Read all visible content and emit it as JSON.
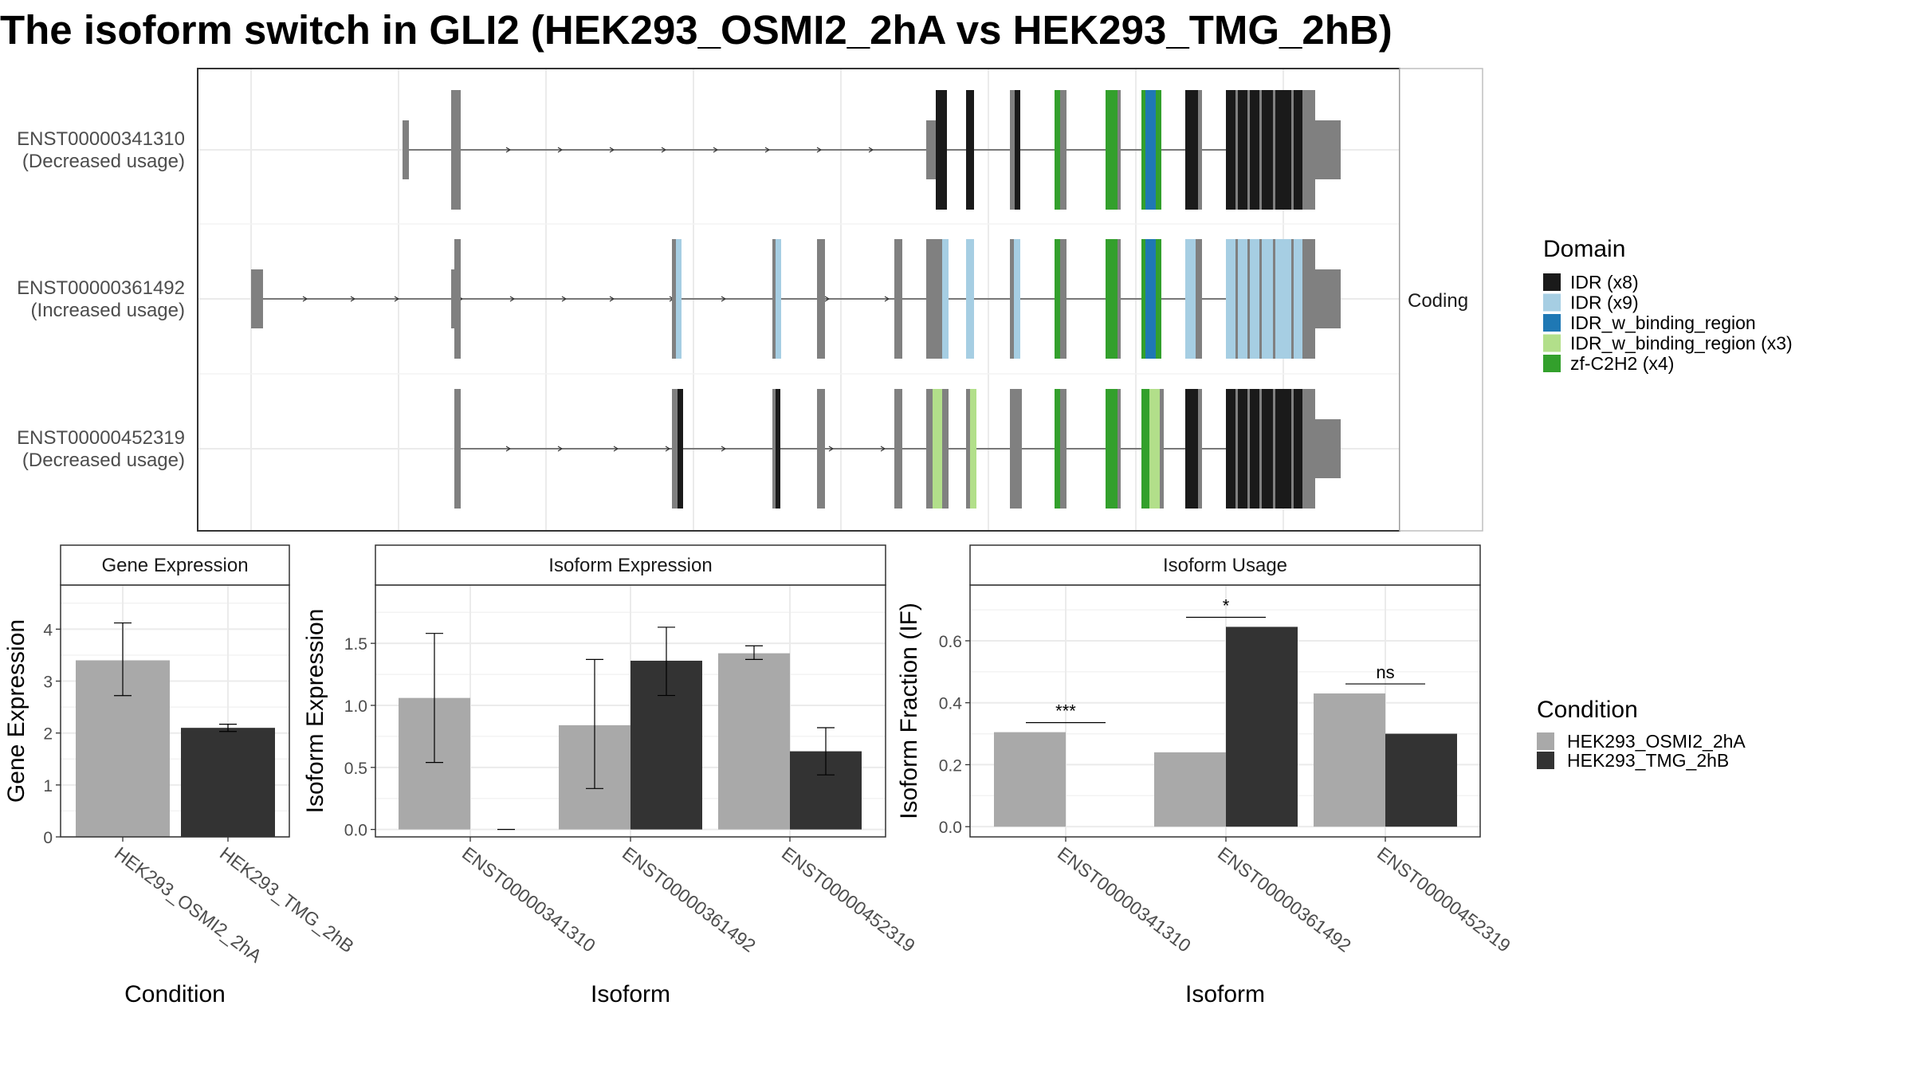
{
  "title": "The isoform switch in GLI2 (HEK293_OSMI2_2hA vs HEK293_TMG_2hB)",
  "colors": {
    "condition_a": "#A9A9A9",
    "condition_b": "#333333",
    "intron_exon": "#808080",
    "domains": {
      "IDR_x8": "#1A1A1A",
      "IDR_x9": "#A6CEE3",
      "IDR_w_binding_region": "#1F78B4",
      "IDR_w_binding_region_x3": "#B2DF8A",
      "zf_C2H2_x4": "#33A02C"
    }
  },
  "structure": {
    "facet_label": "Coding",
    "legend_title": "Domain",
    "legend_items": [
      {
        "label": "IDR (x8)",
        "color": "#1A1A1A"
      },
      {
        "label": "IDR (x9)",
        "color": "#A6CEE3"
      },
      {
        "label": "IDR_w_binding_region",
        "color": "#1F78B4"
      },
      {
        "label": "IDR_w_binding_region (x3)",
        "color": "#B2DF8A"
      },
      {
        "label": "zf-C2H2 (x4)",
        "color": "#33A02C"
      }
    ],
    "isoforms": [
      {
        "id": "ENST00000341310",
        "note": "(Decreased usage)"
      },
      {
        "id": "ENST00000361492",
        "note": "(Increased usage)"
      },
      {
        "id": "ENST00000452319",
        "note": "(Decreased usage)"
      }
    ]
  },
  "condition_legend": {
    "title": "Condition",
    "items": [
      {
        "label": "HEK293_OSMI2_2hA",
        "color": "#A9A9A9"
      },
      {
        "label": "HEK293_TMG_2hB",
        "color": "#333333"
      }
    ]
  },
  "chart_data": [
    {
      "type": "bar",
      "title": "Gene Expression",
      "xlabel": "Condition",
      "ylabel": "Gene Expression",
      "categories": [
        "HEK293_OSMI2_2hA",
        "HEK293_TMG_2hB"
      ],
      "values": [
        3.4,
        2.1
      ],
      "error_low": [
        2.72,
        2.03
      ],
      "error_high": [
        4.12,
        2.17
      ],
      "ylim": [
        0,
        4.85
      ],
      "yticks": [
        "0",
        "1",
        "2",
        "3",
        "4"
      ]
    },
    {
      "type": "bar",
      "title": "Isoform Expression",
      "xlabel": "Isoform",
      "ylabel": "Isoform Expression",
      "categories": [
        "ENST00000341310",
        "ENST00000361492",
        "ENST00000452319"
      ],
      "series": [
        {
          "name": "HEK293_OSMI2_2hA",
          "values": [
            1.06,
            0.84,
            1.42
          ],
          "error_low": [
            0.54,
            0.33,
            1.37
          ],
          "error_high": [
            1.58,
            1.37,
            1.48
          ]
        },
        {
          "name": "HEK293_TMG_2hB",
          "values": [
            0.0,
            1.36,
            0.63
          ],
          "error_low": [
            0.0,
            1.08,
            0.44
          ],
          "error_high": [
            0.0,
            1.63,
            0.82
          ]
        }
      ],
      "ylim": [
        -0.06,
        1.97
      ],
      "yticks": [
        "0.0",
        "0.5",
        "1.0",
        "1.5"
      ]
    },
    {
      "type": "bar",
      "title": "Isoform Usage",
      "xlabel": "Isoform",
      "ylabel": "Isoform Fraction (IF)",
      "categories": [
        "ENST00000341310",
        "ENST00000361492",
        "ENST00000452319"
      ],
      "series": [
        {
          "name": "HEK293_OSMI2_2hA",
          "values": [
            0.305,
            0.24,
            0.43
          ]
        },
        {
          "name": "HEK293_TMG_2hB",
          "values": [
            0.0,
            0.645,
            0.3
          ]
        }
      ],
      "significance": [
        "***",
        "*",
        "ns"
      ],
      "ylim": [
        -0.033,
        0.78
      ],
      "yticks": [
        "0.0",
        "0.2",
        "0.4",
        "0.6"
      ]
    }
  ]
}
